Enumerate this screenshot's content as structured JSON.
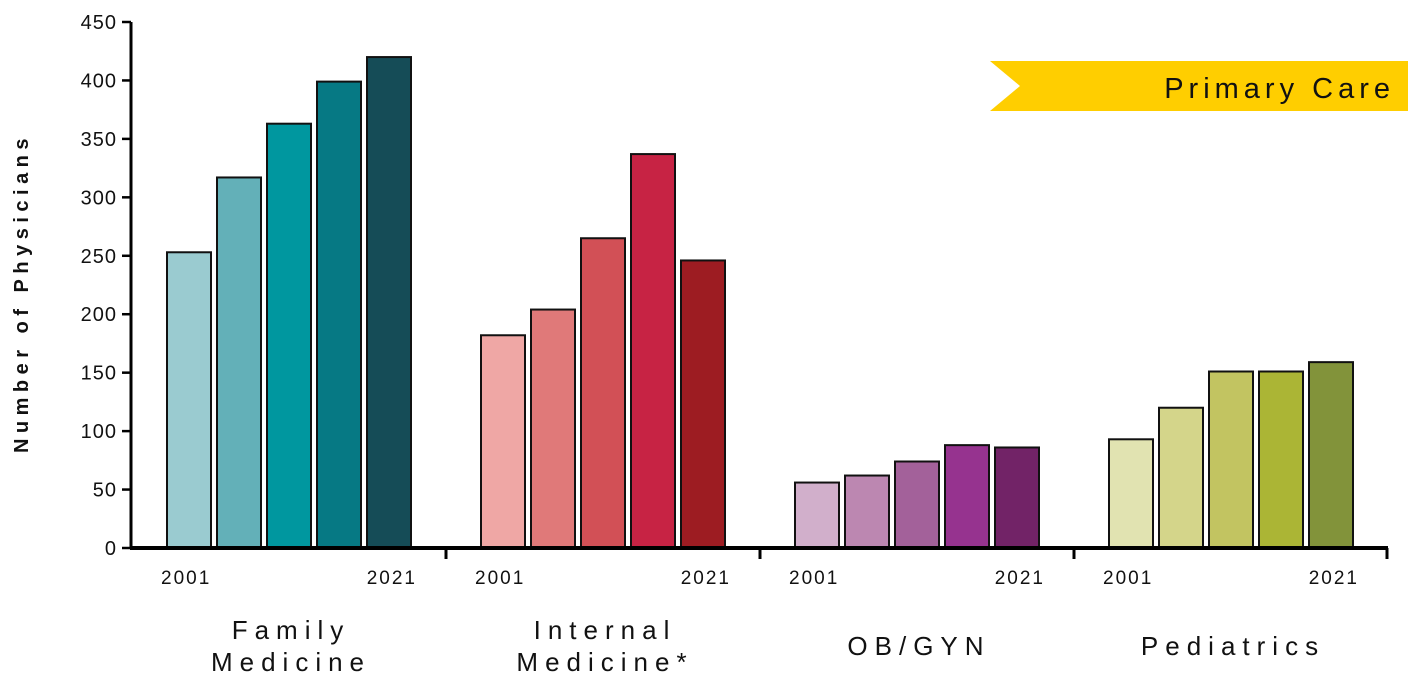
{
  "chart_data": {
    "type": "bar",
    "title": "",
    "xlabel": "",
    "ylabel": "Number of Physicians",
    "ylim": [
      0,
      450
    ],
    "yticks": [
      0,
      50,
      100,
      150,
      200,
      250,
      300,
      350,
      400,
      450
    ],
    "grid": false,
    "banner": {
      "text": "Primary Care",
      "color": "#FFCE00"
    },
    "groups": [
      {
        "name": "Family Medicine",
        "label_lines": [
          "Family",
          "Medicine"
        ],
        "year_start": "2001",
        "year_end": "2021",
        "values": [
          253,
          317,
          363,
          399,
          420
        ],
        "colors": [
          "#9ACBD0",
          "#63B0B8",
          "#00979F",
          "#067984",
          "#154C57"
        ]
      },
      {
        "name": "Internal Medicine*",
        "label_lines": [
          "Internal",
          "Medicine*"
        ],
        "year_start": "2001",
        "year_end": "2021",
        "values": [
          182,
          204,
          265,
          337,
          246
        ],
        "colors": [
          "#EFA7A5",
          "#E07979",
          "#D25056",
          "#C72344",
          "#9D1C22"
        ]
      },
      {
        "name": "OB/GYN",
        "label_lines": [
          "OB/GYN"
        ],
        "year_start": "2001",
        "year_end": "2021",
        "values": [
          56,
          62,
          74,
          88,
          86
        ],
        "colors": [
          "#D1AFCB",
          "#BC87B1",
          "#A3619A",
          "#96338F",
          "#722367"
        ]
      },
      {
        "name": "Pediatrics",
        "label_lines": [
          "Pediatrics"
        ],
        "year_start": "2001",
        "year_end": "2021",
        "values": [
          93,
          120,
          151,
          151,
          159
        ],
        "colors": [
          "#E1E3B1",
          "#D4D58A",
          "#C2C461",
          "#ABB535",
          "#82933A"
        ]
      }
    ]
  }
}
